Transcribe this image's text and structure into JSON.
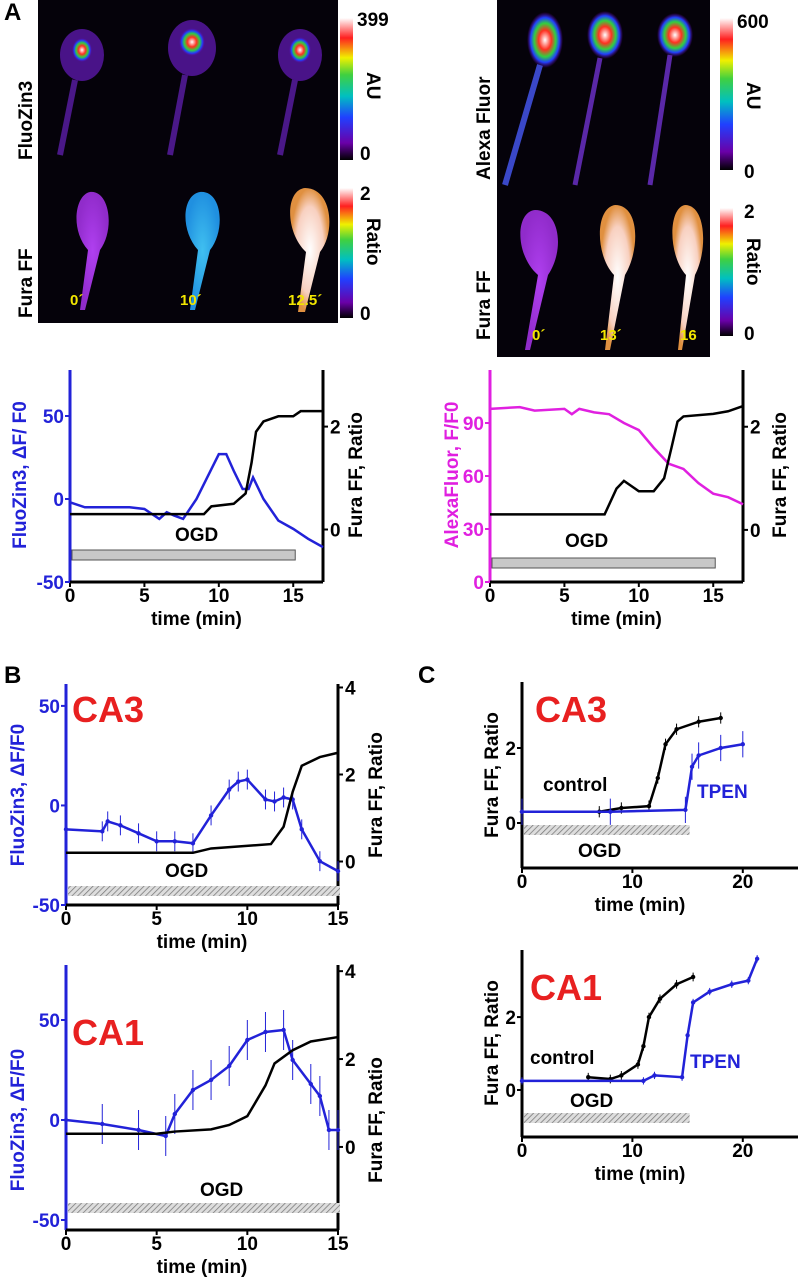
{
  "panels": {
    "a": "A",
    "b": "B",
    "c": "C"
  },
  "images": {
    "left": {
      "row_labels": [
        "FluoZin3",
        "Fura FF"
      ],
      "time_labels": [
        "0´",
        "10´",
        "12.5´"
      ],
      "colorbar_top": {
        "max": "399",
        "unit": "AU",
        "min": "0"
      },
      "colorbar_bottom": {
        "max": "2",
        "unit": "Ratio",
        "min": "0"
      }
    },
    "right": {
      "row_labels": [
        "Alexa Fluor",
        "Fura FF"
      ],
      "time_labels": [
        "0´",
        "13´",
        "16"
      ],
      "colorbar_top": {
        "max": "600",
        "unit": "AU",
        "min": "0"
      },
      "colorbar_bottom": {
        "max": "2",
        "unit": "Ratio",
        "min": "0"
      }
    }
  },
  "colors": {
    "blue": "#2222d8",
    "magenta": "#e020e0",
    "black": "#000000",
    "red": "#e82020",
    "ogd_bar": "#c8c8c8"
  },
  "chart_data": [
    {
      "type": "line",
      "panel": "A-left",
      "region": "",
      "xlabel": "time (min)",
      "ylabel": "FluoZin3, ΔF/ F0",
      "y2label": "Fura FF, Ratio",
      "xlim": [
        0,
        17
      ],
      "ylim": [
        -50,
        77.7
      ],
      "y2lim": [
        -1.02,
        3.1
      ],
      "xticks": [
        "0",
        "5",
        "10",
        "15"
      ],
      "yticks": [
        "-50",
        "0",
        "50"
      ],
      "y2ticks": [
        "0",
        "2"
      ],
      "annotation": "OGD",
      "ogd": [
        0,
        15
      ],
      "ylabel_color": "blue",
      "series": [
        {
          "name": "FluoZin3",
          "axis": "left",
          "color": "blue",
          "points": [
            [
              0,
              -2
            ],
            [
              1,
              -5
            ],
            [
              2,
              -5
            ],
            [
              3,
              -5
            ],
            [
              4,
              -5
            ],
            [
              5,
              -6
            ],
            [
              6,
              -12
            ],
            [
              6.5,
              -8
            ],
            [
              7,
              -10
            ],
            [
              7.6,
              -12
            ],
            [
              8.5,
              0
            ],
            [
              9.5,
              18
            ],
            [
              10,
              27
            ],
            [
              10.5,
              27
            ],
            [
              11,
              17
            ],
            [
              11.6,
              6
            ],
            [
              12,
              6
            ],
            [
              12.3,
              13
            ],
            [
              13,
              0
            ],
            [
              14,
              -13
            ],
            [
              15,
              -18
            ],
            [
              16,
              -24
            ],
            [
              17,
              -29
            ]
          ]
        },
        {
          "name": "Fura FF",
          "axis": "right",
          "color": "black",
          "points": [
            [
              0,
              0.3
            ],
            [
              9,
              0.3
            ],
            [
              9.5,
              0.45
            ],
            [
              11,
              0.5
            ],
            [
              11.8,
              0.7
            ],
            [
              12.2,
              1.3
            ],
            [
              12.5,
              1.9
            ],
            [
              13,
              2.1
            ],
            [
              14,
              2.2
            ],
            [
              15,
              2.2
            ],
            [
              15.5,
              2.3
            ],
            [
              17,
              2.3
            ]
          ]
        }
      ]
    },
    {
      "type": "line",
      "panel": "A-right",
      "region": "",
      "xlabel": "time (min)",
      "ylabel": "AlexaFluor, F/F0",
      "y2label": "Fura FF, Ratio",
      "xlim": [
        0,
        17
      ],
      "ylim": [
        0,
        120
      ],
      "y2lim": [
        -1.01,
        3.1
      ],
      "xticks": [
        "0",
        "5",
        "10",
        "15"
      ],
      "yticks": [
        "0",
        "30",
        "60",
        "90"
      ],
      "y2ticks": [
        "0",
        "2"
      ],
      "annotation": "OGD",
      "ogd": [
        0,
        15
      ],
      "ylabel_color": "magenta",
      "series": [
        {
          "name": "AlexaFluor",
          "axis": "left",
          "color": "magenta",
          "points": [
            [
              0,
              98
            ],
            [
              2,
              99
            ],
            [
              3,
              97
            ],
            [
              5,
              98
            ],
            [
              5.5,
              95
            ],
            [
              6,
              98
            ],
            [
              7,
              96
            ],
            [
              8,
              95
            ],
            [
              9,
              90
            ],
            [
              10,
              86
            ],
            [
              11,
              76
            ],
            [
              12,
              67
            ],
            [
              13,
              64
            ],
            [
              14,
              56
            ],
            [
              15,
              50
            ],
            [
              16,
              48
            ],
            [
              17,
              44
            ]
          ]
        },
        {
          "name": "Fura FF",
          "axis": "right",
          "color": "black",
          "points": [
            [
              0,
              0.3
            ],
            [
              7.7,
              0.3
            ],
            [
              8.5,
              0.8
            ],
            [
              9,
              0.95
            ],
            [
              10,
              0.75
            ],
            [
              11,
              0.75
            ],
            [
              11.7,
              1.0
            ],
            [
              12.2,
              1.6
            ],
            [
              12.6,
              2.1
            ],
            [
              13,
              2.2
            ],
            [
              15,
              2.25
            ],
            [
              16,
              2.3
            ],
            [
              17,
              2.4
            ]
          ]
        }
      ]
    },
    {
      "type": "line",
      "panel": "B",
      "region": "CA3",
      "xlabel": "time (min)",
      "ylabel": "FluoZin3, ΔF/F0",
      "y2label": "Fura FF, Ratio",
      "xlim": [
        0,
        15
      ],
      "ylim": [
        -50,
        61
      ],
      "y2lim": [
        -1,
        4.08
      ],
      "xticks": [
        "0",
        "5",
        "10",
        "15"
      ],
      "yticks": [
        "-50",
        "0",
        "50"
      ],
      "y2ticks": [
        "0",
        "2",
        "4"
      ],
      "annotation": "OGD",
      "ogd": [
        0,
        15
      ],
      "ylabel_color": "blue",
      "series": [
        {
          "name": "FluoZin3",
          "axis": "left",
          "color": "blue",
          "error": 5,
          "points": [
            [
              0,
              -12
            ],
            [
              2,
              -13
            ],
            [
              2.3,
              -8
            ],
            [
              3,
              -10
            ],
            [
              4,
              -14
            ],
            [
              5,
              -18
            ],
            [
              6,
              -18
            ],
            [
              7,
              -19
            ],
            [
              8,
              -5
            ],
            [
              9,
              8
            ],
            [
              9.5,
              12
            ],
            [
              10,
              13
            ],
            [
              11,
              3
            ],
            [
              11.5,
              2
            ],
            [
              12,
              4
            ],
            [
              12.5,
              3
            ],
            [
              13,
              -12
            ],
            [
              14,
              -28
            ],
            [
              15,
              -33
            ]
          ]
        },
        {
          "name": "Fura FF",
          "axis": "right",
          "color": "black",
          "points": [
            [
              0,
              0.2
            ],
            [
              7,
              0.2
            ],
            [
              8,
              0.3
            ],
            [
              11.3,
              0.4
            ],
            [
              12,
              0.8
            ],
            [
              12.5,
              1.6
            ],
            [
              13,
              2.2
            ],
            [
              14,
              2.4
            ],
            [
              15,
              2.5
            ]
          ]
        }
      ]
    },
    {
      "type": "line",
      "panel": "B",
      "region": "CA1",
      "xlabel": "time (min)",
      "ylabel": "FluoZin3, ΔF/F0",
      "y2label": "Fura FF, Ratio",
      "xlim": [
        0,
        15
      ],
      "ylim": [
        -55,
        77.5
      ],
      "y2lim": [
        -1.89,
        4.14
      ],
      "xticks": [
        "0",
        "5",
        "10",
        "15"
      ],
      "yticks": [
        "-50",
        "0",
        "50"
      ],
      "y2ticks": [
        "0",
        "2",
        "4"
      ],
      "annotation": "OGD",
      "ogd": [
        0,
        15
      ],
      "ylabel_color": "blue",
      "series": [
        {
          "name": "FluoZin3",
          "axis": "left",
          "color": "blue",
          "error": 10,
          "points": [
            [
              0,
              0
            ],
            [
              2,
              -2
            ],
            [
              4,
              -5
            ],
            [
              5.5,
              -8
            ],
            [
              6,
              3
            ],
            [
              7,
              15
            ],
            [
              8,
              20
            ],
            [
              9,
              27
            ],
            [
              10,
              40
            ],
            [
              11,
              44
            ],
            [
              12,
              45
            ],
            [
              12.5,
              30
            ],
            [
              13.5,
              18
            ],
            [
              14,
              12
            ],
            [
              14.5,
              -5
            ],
            [
              15,
              -5
            ]
          ]
        },
        {
          "name": "Fura FF",
          "axis": "right",
          "color": "black",
          "points": [
            [
              0,
              0.3
            ],
            [
              5,
              0.3
            ],
            [
              6,
              0.35
            ],
            [
              8,
              0.4
            ],
            [
              9,
              0.5
            ],
            [
              10,
              0.7
            ],
            [
              11,
              1.4
            ],
            [
              11.5,
              1.9
            ],
            [
              12.5,
              2.2
            ],
            [
              13.5,
              2.4
            ],
            [
              15,
              2.5
            ]
          ]
        }
      ]
    },
    {
      "type": "line",
      "panel": "C",
      "region": "CA3",
      "xlabel": "time (min)",
      "ylabel": "Fura FF, Ratio",
      "xlim": [
        0,
        25
      ],
      "ylim": [
        -1.2,
        3.76
      ],
      "xticks": [
        "0",
        "10",
        "20"
      ],
      "yticks": [
        "0",
        "2"
      ],
      "annotation": "OGD",
      "ogd": [
        0,
        15
      ],
      "ylabel_color": "black",
      "series": [
        {
          "name": "control",
          "axis": "left",
          "color": "black",
          "error": 0.15,
          "points": [
            [
              0,
              0.3
            ],
            [
              7,
              0.3
            ],
            [
              9,
              0.4
            ],
            [
              11.5,
              0.45
            ],
            [
              12.3,
              1.2
            ],
            [
              13,
              2.1
            ],
            [
              14,
              2.5
            ],
            [
              16,
              2.7
            ],
            [
              18,
              2.8
            ]
          ]
        },
        {
          "name": "TPEN",
          "axis": "left",
          "color": "blue",
          "error": 0.35,
          "points": [
            [
              0,
              0.3
            ],
            [
              8,
              0.3
            ],
            [
              14.8,
              0.35
            ],
            [
              15.4,
              1.5
            ],
            [
              16,
              1.8
            ],
            [
              18,
              2.0
            ],
            [
              20,
              2.1
            ]
          ]
        }
      ]
    },
    {
      "type": "line",
      "panel": "C",
      "region": "CA1",
      "xlabel": "time (min)",
      "ylabel": "Fura FF, Ratio",
      "xlim": [
        0,
        25
      ],
      "ylim": [
        -1.29,
        3.84
      ],
      "xticks": [
        "0",
        "10",
        "20"
      ],
      "yticks": [
        "0",
        "2"
      ],
      "annotation": "OGD",
      "ogd": [
        0,
        15
      ],
      "ylabel_color": "black",
      "series": [
        {
          "name": "control",
          "axis": "left",
          "color": "black",
          "error": 0.12,
          "points": [
            [
              6,
              0.35
            ],
            [
              8,
              0.3
            ],
            [
              9,
              0.4
            ],
            [
              10.5,
              0.7
            ],
            [
              11,
              1.2
            ],
            [
              11.5,
              2.0
            ],
            [
              12.5,
              2.5
            ],
            [
              14,
              2.9
            ],
            [
              15.5,
              3.1
            ]
          ]
        },
        {
          "name": "TPEN",
          "axis": "left",
          "color": "blue",
          "error": 0.1,
          "points": [
            [
              0,
              0.25
            ],
            [
              11,
              0.25
            ],
            [
              12,
              0.4
            ],
            [
              14.5,
              0.35
            ],
            [
              15,
              1.5
            ],
            [
              15.5,
              2.4
            ],
            [
              17,
              2.7
            ],
            [
              19,
              2.9
            ],
            [
              20.5,
              3.0
            ],
            [
              21.3,
              3.6
            ]
          ]
        }
      ]
    }
  ]
}
